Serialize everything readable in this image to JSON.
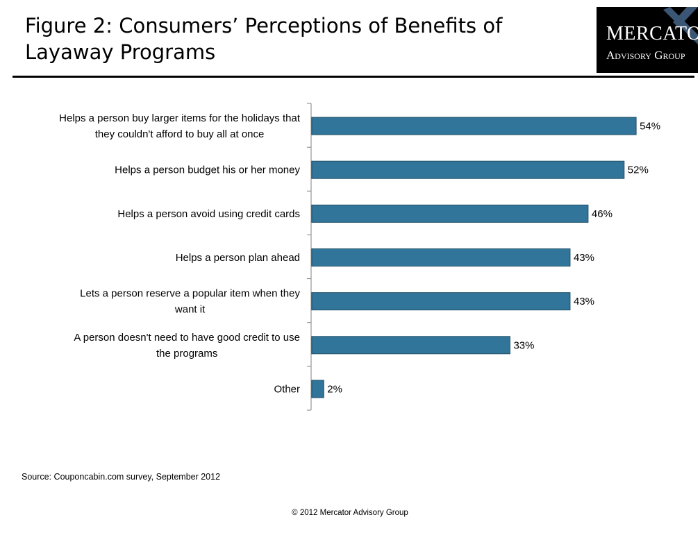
{
  "header": {
    "title": "Figure 2: Consumers’ Perceptions of Benefits of Layaway Programs"
  },
  "logo": {
    "line1": "Mercator",
    "line2": "Advisory Group"
  },
  "chart_data": {
    "type": "bar",
    "orientation": "horizontal",
    "categories": [
      "Helps a person buy larger items for the holidays that they couldn't afford to buy all at once",
      "Helps a person budget his or her money",
      "Helps a person avoid using credit cards",
      "Helps a person plan ahead",
      "Lets a person reserve a popular item when they want it",
      "A person doesn't need to have good credit to use the programs",
      "Other"
    ],
    "category_lines": [
      [
        "Helps a person buy larger items for the holidays that",
        "they couldn't afford to buy all at once"
      ],
      [
        "Helps a person budget his or her money"
      ],
      [
        "Helps a person avoid using credit cards"
      ],
      [
        "Helps a person plan ahead"
      ],
      [
        "Lets a person reserve a popular item when they",
        "want it"
      ],
      [
        "A person doesn't need to have good credit to use",
        "the programs"
      ],
      [
        "Other"
      ]
    ],
    "values": [
      54,
      52,
      46,
      43,
      43,
      33,
      2
    ],
    "value_labels": [
      "54%",
      "52%",
      "46%",
      "43%",
      "43%",
      "33%",
      "2%"
    ],
    "unit": "%",
    "xlim": [
      0,
      60
    ],
    "grid": false,
    "legend": "none",
    "bar_color": "#31769A",
    "bar_edge_color": "#1F4E66"
  },
  "footer": {
    "source": "Source: Couponcabin.com survey, September 2012",
    "copyright": "© 2012 Mercator Advisory Group"
  }
}
